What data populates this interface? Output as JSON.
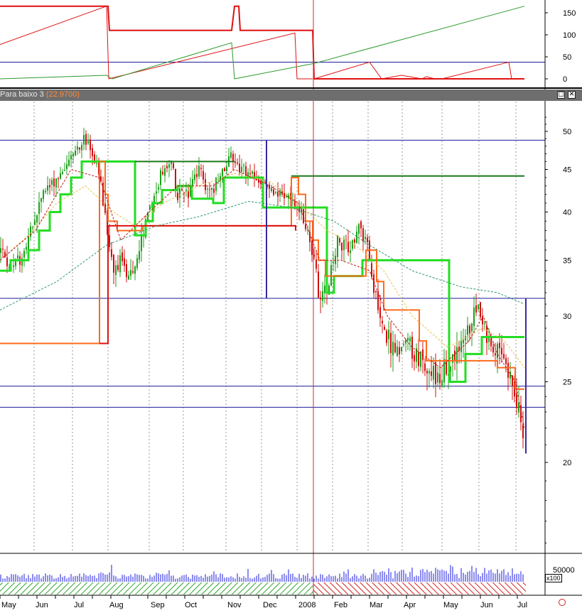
{
  "window": {
    "indicator_name": "Para baixo 3",
    "indicator_value": "(22.9700)",
    "maximize_glyph": "□",
    "close_glyph": "✕"
  },
  "volume_scale_badge": "x100",
  "chart_data": [
    {
      "type": "line",
      "panel": "top-indicator",
      "y_ticks": [
        "150",
        "100",
        "50",
        "0"
      ],
      "ylim": [
        -10,
        175
      ],
      "grid": false,
      "reference_lines": [
        {
          "y": 38,
          "color": "#1b1b9a"
        }
      ],
      "series": [
        {
          "color": "#e01010",
          "stroke_width": 2,
          "points": [
            [
              0,
              165
            ],
            [
              152,
              165
            ],
            [
              154,
              110
            ],
            [
              326,
              110
            ],
            [
              330,
              165
            ],
            [
              336,
              165
            ],
            [
              338,
              110
            ],
            [
              440,
              110
            ],
            [
              442,
              0
            ],
            [
              738,
              0
            ]
          ]
        },
        {
          "color": "#e01010",
          "stroke_width": 1,
          "points": [
            [
              0,
              78
            ],
            [
              150,
              165
            ],
            [
              153,
              0
            ],
            [
              415,
              104
            ],
            [
              418,
              0
            ],
            [
              440,
              0
            ]
          ]
        },
        {
          "color": "#e01010",
          "stroke_width": 1,
          "points": [
            [
              442,
              0
            ],
            [
              520,
              38
            ],
            [
              537,
              0
            ],
            [
              565,
              8
            ],
            [
              594,
              0
            ],
            [
              600,
              5
            ],
            [
              612,
              0
            ],
            [
              622,
              0
            ],
            [
              716,
              38
            ],
            [
              720,
              0
            ]
          ]
        },
        {
          "color": "#2c9a2c",
          "stroke_width": 1,
          "points": [
            [
              0,
              0
            ],
            [
              150,
              8
            ],
            [
              158,
              0
            ],
            [
              326,
              82
            ],
            [
              330,
              0
            ],
            [
              442,
              35
            ],
            [
              738,
              165
            ]
          ]
        }
      ]
    },
    {
      "type": "candlestick",
      "panel": "price",
      "y_ticks": [
        "50",
        "45",
        "40",
        "35",
        "30",
        "25",
        "20"
      ],
      "ylim": [
        15,
        52
      ],
      "log_scale": true,
      "grid": "vertical-dashed",
      "month_labels": [
        "May",
        "Jun",
        "Jul",
        "Aug",
        "Sep",
        "Oct",
        "Nov",
        "Dec",
        "2008",
        "Feb",
        "Mar",
        "Apr",
        "May",
        "Jun",
        "Jul"
      ],
      "horizontal_lines": [
        {
          "y": 48.8,
          "color": "#1b1b9a"
        },
        {
          "y": 31.5,
          "color": "#1b1b9a"
        },
        {
          "y": 24.7,
          "color": "#1b1b9a"
        },
        {
          "y": 23.3,
          "color": "#1b1b9a"
        },
        {
          "y": 44.2,
          "color": "#1a7a1a",
          "x_range": [
            410,
            738
          ]
        }
      ],
      "price_path": [
        [
          0,
          36
        ],
        [
          20,
          34
        ],
        [
          40,
          37
        ],
        [
          60,
          42
        ],
        [
          80,
          44
        ],
        [
          100,
          46.5
        ],
        [
          118,
          49
        ],
        [
          130,
          47
        ],
        [
          140,
          44
        ],
        [
          150,
          38
        ],
        [
          160,
          34
        ],
        [
          170,
          35
        ],
        [
          182,
          33
        ],
        [
          195,
          36
        ],
        [
          210,
          40
        ],
        [
          225,
          44
        ],
        [
          240,
          46
        ],
        [
          250,
          42
        ],
        [
          265,
          42
        ],
        [
          280,
          45
        ],
        [
          295,
          42
        ],
        [
          310,
          44
        ],
        [
          325,
          47
        ],
        [
          340,
          45
        ],
        [
          355,
          44
        ],
        [
          375,
          43
        ],
        [
          395,
          42
        ],
        [
          415,
          41
        ],
        [
          425,
          40
        ],
        [
          440,
          36
        ],
        [
          450,
          31
        ],
        [
          462,
          33
        ],
        [
          475,
          37
        ],
        [
          490,
          36
        ],
        [
          505,
          38
        ],
        [
          515,
          37
        ],
        [
          525,
          33
        ],
        [
          540,
          29
        ],
        [
          555,
          27
        ],
        [
          570,
          28
        ],
        [
          585,
          27
        ],
        [
          600,
          26
        ],
        [
          615,
          25.5
        ],
        [
          630,
          26
        ],
        [
          645,
          27
        ],
        [
          660,
          29
        ],
        [
          670,
          31
        ],
        [
          680,
          30
        ],
        [
          690,
          27
        ],
        [
          700,
          27
        ],
        [
          712,
          26
        ],
        [
          722,
          25
        ],
        [
          732,
          23
        ],
        [
          738,
          20.5
        ]
      ],
      "series": [
        {
          "role": "green-trailing-stop",
          "color": "#22dd22",
          "stroke_width": 3,
          "points": [
            [
              0,
              34
            ],
            [
              15,
              34
            ],
            [
              15,
              35
            ],
            [
              40,
              35
            ],
            [
              40,
              36
            ],
            [
              55,
              36
            ],
            [
              55,
              38
            ],
            [
              70,
              38
            ],
            [
              70,
              40
            ],
            [
              85,
              40
            ],
            [
              85,
              42
            ],
            [
              100,
              42
            ],
            [
              100,
              44
            ],
            [
              115,
              44
            ],
            [
              115,
              46
            ],
            [
              190,
              46
            ],
            [
              190,
              37.5
            ],
            [
              205,
              37.5
            ],
            [
              205,
              39
            ],
            [
              215,
              39
            ],
            [
              215,
              41
            ],
            [
              228,
              41
            ],
            [
              228,
              42.5
            ],
            [
              250,
              42.5
            ],
            [
              250,
              43
            ],
            [
              270,
              43
            ],
            [
              270,
              41.5
            ],
            [
              300,
              41.5
            ],
            [
              300,
              41
            ],
            [
              315,
              41
            ],
            [
              315,
              44
            ],
            [
              370,
              44
            ],
            [
              370,
              40.5
            ],
            [
              460,
              40.5
            ],
            [
              460,
              32
            ],
            [
              470,
              32
            ],
            [
              470,
              33.5
            ],
            [
              510,
              33.5
            ],
            [
              510,
              35
            ],
            [
              632,
              35
            ],
            [
              632,
              25
            ],
            [
              655,
              25
            ],
            [
              655,
              27
            ],
            [
              678,
              27
            ],
            [
              678,
              28.3
            ],
            [
              738,
              28.3
            ]
          ]
        },
        {
          "role": "orange-trailing-stop",
          "color": "#ff6a1a",
          "stroke_width": 2,
          "points": [
            [
              0,
              27.8
            ],
            [
              140,
              27.8
            ],
            [
              140,
              46
            ],
            [
              148,
              46
            ],
            [
              148,
              42
            ],
            [
              152,
              42
            ],
            [
              152,
              39
            ],
            [
              165,
              39
            ],
            [
              165,
              38
            ],
            [
              200,
              38
            ],
            [
              200,
              38.5
            ],
            [
              410,
              38.5
            ],
            [
              410,
              44
            ],
            [
              420,
              44
            ],
            [
              420,
              42
            ],
            [
              430,
              42
            ],
            [
              430,
              39
            ],
            [
              440,
              39
            ],
            [
              440,
              37
            ],
            [
              448,
              37
            ],
            [
              448,
              35
            ],
            [
              458,
              35
            ],
            [
              458,
              33.5
            ],
            [
              515,
              33.5
            ],
            [
              515,
              36
            ],
            [
              530,
              36
            ],
            [
              530,
              33
            ],
            [
              540,
              33
            ],
            [
              540,
              30.5
            ],
            [
              590,
              30.5
            ],
            [
              590,
              28
            ],
            [
              600,
              28
            ],
            [
              600,
              26.5
            ],
            [
              700,
              26.5
            ],
            [
              700,
              26
            ],
            [
              725,
              26
            ],
            [
              725,
              24.5
            ],
            [
              738,
              24.5
            ]
          ]
        },
        {
          "role": "red-step-stop",
          "color": "#e01010",
          "stroke_width": 2,
          "points": [
            [
              140,
              27.8
            ],
            [
              152,
              27.8
            ],
            [
              152,
              38.5
            ],
            [
              410,
              38.5
            ],
            [
              416,
              38.5
            ],
            [
              416,
              38
            ]
          ]
        },
        {
          "role": "dark-green-line",
          "color": "#1a7a1a",
          "stroke_width": 2,
          "points": [
            [
              190,
              46
            ],
            [
              330,
              46
            ]
          ]
        },
        {
          "role": "green-ma-dashed",
          "color": "#2e9a6a",
          "stroke_width": 1,
          "dashed": true,
          "points": [
            [
              0,
              30.5
            ],
            [
              80,
              33
            ],
            [
              150,
              36.5
            ],
            [
              220,
              38.5
            ],
            [
              280,
              39.5
            ],
            [
              350,
              41.2
            ],
            [
              410,
              40.5
            ],
            [
              470,
              39
            ],
            [
              520,
              36.5
            ],
            [
              580,
              34
            ],
            [
              650,
              32.5
            ],
            [
              700,
              32
            ],
            [
              738,
              31
            ]
          ]
        },
        {
          "role": "yellow-ma-dashed",
          "color": "#e8c24a",
          "stroke_width": 1,
          "dashed": true,
          "points": [
            [
              0,
              35
            ],
            [
              40,
              37.5
            ],
            [
              80,
              41
            ],
            [
              120,
              43
            ],
            [
              160,
              40
            ],
            [
              190,
              38.5
            ],
            [
              230,
              41
            ],
            [
              280,
              43
            ],
            [
              330,
              44.5
            ],
            [
              380,
              43.5
            ],
            [
              420,
              41
            ],
            [
              460,
              38
            ],
            [
              500,
              36.5
            ],
            [
              540,
              34
            ],
            [
              580,
              30
            ],
            [
              630,
              27.5
            ],
            [
              680,
              29
            ],
            [
              710,
              28
            ],
            [
              738,
              26
            ]
          ]
        },
        {
          "role": "red-ma-dashed",
          "color": "#c01818",
          "stroke_width": 1,
          "dashed": true,
          "points": [
            [
              0,
              35
            ],
            [
              50,
              38
            ],
            [
              100,
              45
            ],
            [
              140,
              44
            ],
            [
              170,
              37
            ],
            [
              210,
              40
            ],
            [
              250,
              43
            ],
            [
              300,
              43
            ],
            [
              330,
              45
            ],
            [
              380,
              43
            ],
            [
              420,
              41
            ],
            [
              450,
              35
            ],
            [
              480,
              35
            ],
            [
              520,
              34
            ],
            [
              545,
              30
            ],
            [
              580,
              27.5
            ],
            [
              620,
              26
            ],
            [
              660,
              28
            ],
            [
              680,
              30
            ],
            [
              700,
              27
            ],
            [
              725,
              25
            ],
            [
              738,
              22
            ]
          ]
        }
      ],
      "markers": [
        {
          "type": "vertical",
          "x": 375,
          "y_range": [
            31.5,
            48.8
          ],
          "color": "#3a2a9a"
        },
        {
          "type": "vertical",
          "x": 740,
          "y_range": [
            20.5,
            31.5
          ],
          "color": "#3a2a9a"
        }
      ]
    },
    {
      "type": "bar",
      "panel": "volume",
      "y_ticks": [
        "50000"
      ],
      "bar_color": "#1a1ae0",
      "cursor_line_x": 441
    }
  ]
}
